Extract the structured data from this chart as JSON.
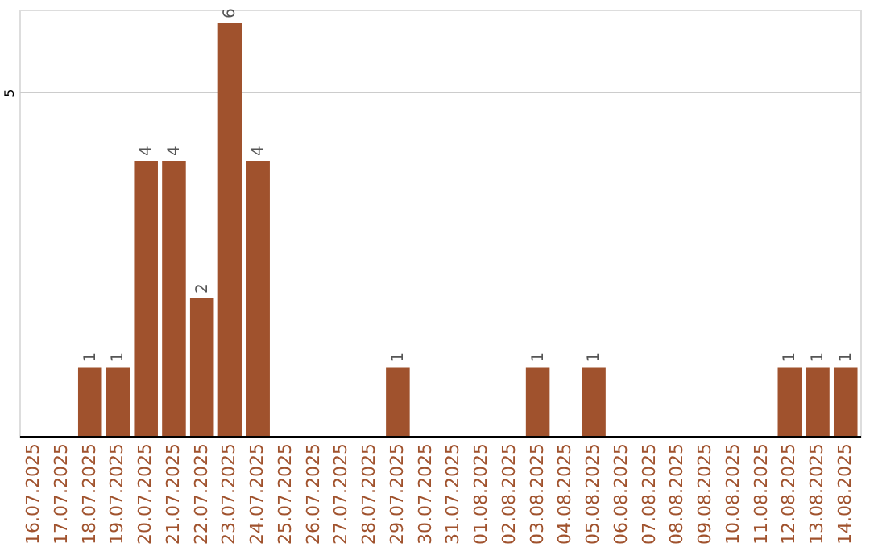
{
  "chart_data": {
    "type": "bar",
    "categories": [
      "16.07.2025",
      "17.07.2025",
      "18.07.2025",
      "19.07.2025",
      "20.07.2025",
      "21.07.2025",
      "22.07.2025",
      "23.07.2025",
      "24.07.2025",
      "25.07.2025",
      "26.07.2025",
      "27.07.2025",
      "28.07.2025",
      "29.07.2025",
      "30.07.2025",
      "31.07.2025",
      "01.08.2025",
      "02.08.2025",
      "03.08.2025",
      "04.08.2025",
      "05.08.2025",
      "06.08.2025",
      "07.08.2025",
      "08.08.2025",
      "09.08.2025",
      "10.08.2025",
      "11.08.2025",
      "12.08.2025",
      "13.08.2025",
      "14.08.2025"
    ],
    "values": [
      0,
      0,
      1,
      1,
      4,
      4,
      2,
      6,
      4,
      0,
      0,
      0,
      0,
      1,
      0,
      0,
      0,
      0,
      1,
      0,
      1,
      0,
      0,
      0,
      0,
      0,
      0,
      1,
      1,
      1
    ],
    "value_labels": [
      null,
      null,
      "1",
      "1",
      "4",
      "4",
      "2",
      "6",
      "4",
      null,
      null,
      null,
      null,
      "1",
      null,
      null,
      null,
      null,
      "1",
      null,
      "1",
      null,
      null,
      null,
      null,
      null,
      null,
      "1",
      "1",
      "1"
    ],
    "color": "#a0522d",
    "ylim": [
      0,
      6.2
    ],
    "yticks": [
      5
    ],
    "grid": "y"
  }
}
